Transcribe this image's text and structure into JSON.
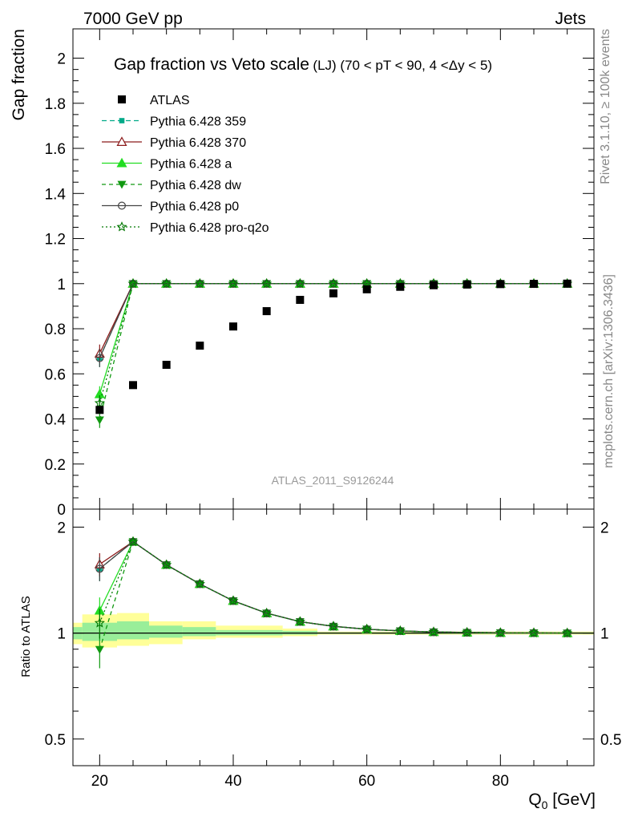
{
  "header": {
    "left": "7000 GeV pp",
    "right": "Jets"
  },
  "side": {
    "top": "Rivet 3.1.10, ≥ 100k events",
    "bottom": "mcplots.cern.ch [arXiv:1306.3436]"
  },
  "chart_data": {
    "type": "scatter",
    "title_main": "Gap fraction vs Veto scale",
    "title_small": "(LJ) (70 < pT <  90, 4 <Δy < 5)",
    "analysis_label": "ATLAS_2011_S9126244",
    "xlabel_main": "Q",
    "xlabel_sub": "0",
    "xlabel_unit": " [GeV]",
    "ylabel": "Gap fraction",
    "ratio_ylabel": "Ratio to ATLAS",
    "xlim": [
      16,
      94
    ],
    "ylim": [
      0,
      2.13
    ],
    "ratio_ylim": [
      0.42,
      2.25
    ],
    "x_ticks": [
      20,
      40,
      60,
      80
    ],
    "x_tick_labels": [
      "20",
      "40",
      "60",
      "80"
    ],
    "y_ticks": [
      0,
      0.2,
      0.4,
      0.6,
      0.8,
      1,
      1.2,
      1.4,
      1.6,
      1.8,
      2
    ],
    "y_tick_labels": [
      "0",
      "0.2",
      "0.4",
      "0.6",
      "0.8",
      "1",
      "1.2",
      "1.4",
      "1.6",
      "1.8",
      "2"
    ],
    "ratio_ticks": [
      0.5,
      1,
      2
    ],
    "ratio_tick_labels": [
      "0.5",
      "1",
      "2"
    ],
    "x": [
      20,
      25,
      30,
      35,
      40,
      45,
      50,
      55,
      60,
      65,
      70,
      75,
      80,
      85,
      90
    ],
    "data": {
      "name": "ATLAS",
      "color": "#000000",
      "values": [
        0.44,
        0.55,
        0.64,
        0.725,
        0.81,
        0.878,
        0.928,
        0.957,
        0.975,
        0.986,
        0.993,
        0.996,
        0.998,
        0.999,
        1.0
      ]
    },
    "series": [
      {
        "name": "Pythia 6.428 359",
        "color": "#00aa88",
        "marker": "square-small",
        "dash": "6,4",
        "values": [
          0.67,
          1,
          1,
          1,
          1,
          1,
          1,
          1,
          1,
          1,
          1,
          1,
          1,
          1,
          1
        ],
        "err0": 0.04
      },
      {
        "name": "Pythia 6.428 370",
        "color": "#8b1a1a",
        "marker": "triangle-open",
        "dash": "",
        "values": [
          0.69,
          1,
          1,
          1,
          1,
          1,
          1,
          1,
          1,
          1,
          1,
          1,
          1,
          1,
          1
        ],
        "err0": 0.04
      },
      {
        "name": "Pythia 6.428 a",
        "color": "#22dd22",
        "marker": "triangle-filled",
        "dash": "",
        "values": [
          0.51,
          1,
          1,
          1,
          1,
          1,
          1,
          1,
          1,
          1,
          1,
          1,
          1,
          1,
          1
        ],
        "err0": 0.035
      },
      {
        "name": "Pythia 6.428 dw",
        "color": "#119911",
        "marker": "triangle-down",
        "dash": "5,4",
        "values": [
          0.395,
          1,
          1,
          1,
          1,
          1,
          1,
          1,
          1,
          1,
          1,
          1,
          1,
          1,
          1
        ],
        "err0": 0.035
      },
      {
        "name": "Pythia 6.428 p0",
        "color": "#444444",
        "marker": "circle-open",
        "dash": "",
        "values": [
          0.67,
          1,
          1,
          1,
          1,
          1,
          1,
          1,
          1,
          1,
          1,
          1,
          1,
          1,
          1
        ],
        "err0": 0.04
      },
      {
        "name": "Pythia 6.428 pro-q2o",
        "color": "#007700",
        "marker": "star-open",
        "dash": "2,3",
        "values": [
          0.47,
          1,
          1,
          1,
          1,
          1,
          1,
          1,
          1,
          1,
          1,
          1,
          1,
          1,
          1
        ],
        "err0": 0.035
      }
    ],
    "ratio_bands": [
      {
        "x0": 16,
        "x1": 17.4,
        "yellow": [
          0.93,
          1.07
        ],
        "green": [
          0.96,
          1.04
        ]
      },
      {
        "x0": 17.4,
        "x1": 22.6,
        "yellow": [
          0.91,
          1.13
        ],
        "green": [
          0.95,
          1.07
        ]
      },
      {
        "x0": 22.6,
        "x1": 27.4,
        "yellow": [
          0.92,
          1.14
        ],
        "green": [
          0.96,
          1.08
        ]
      },
      {
        "x0": 27.4,
        "x1": 32.4,
        "yellow": [
          0.93,
          1.08
        ],
        "green": [
          0.97,
          1.05
        ]
      },
      {
        "x0": 32.4,
        "x1": 37.4,
        "yellow": [
          0.96,
          1.08
        ],
        "green": [
          0.98,
          1.04
        ]
      },
      {
        "x0": 37.4,
        "x1": 47.4,
        "yellow": [
          0.97,
          1.05
        ],
        "green": [
          0.985,
          1.02
        ]
      },
      {
        "x0": 47.4,
        "x1": 52.6,
        "yellow": [
          0.98,
          1.03
        ],
        "green": [
          0.99,
          1.015
        ]
      },
      {
        "x0": 52.6,
        "x1": 94,
        "yellow": [
          0.99,
          1.01
        ],
        "green": [
          0.995,
          1.005
        ]
      }
    ]
  }
}
